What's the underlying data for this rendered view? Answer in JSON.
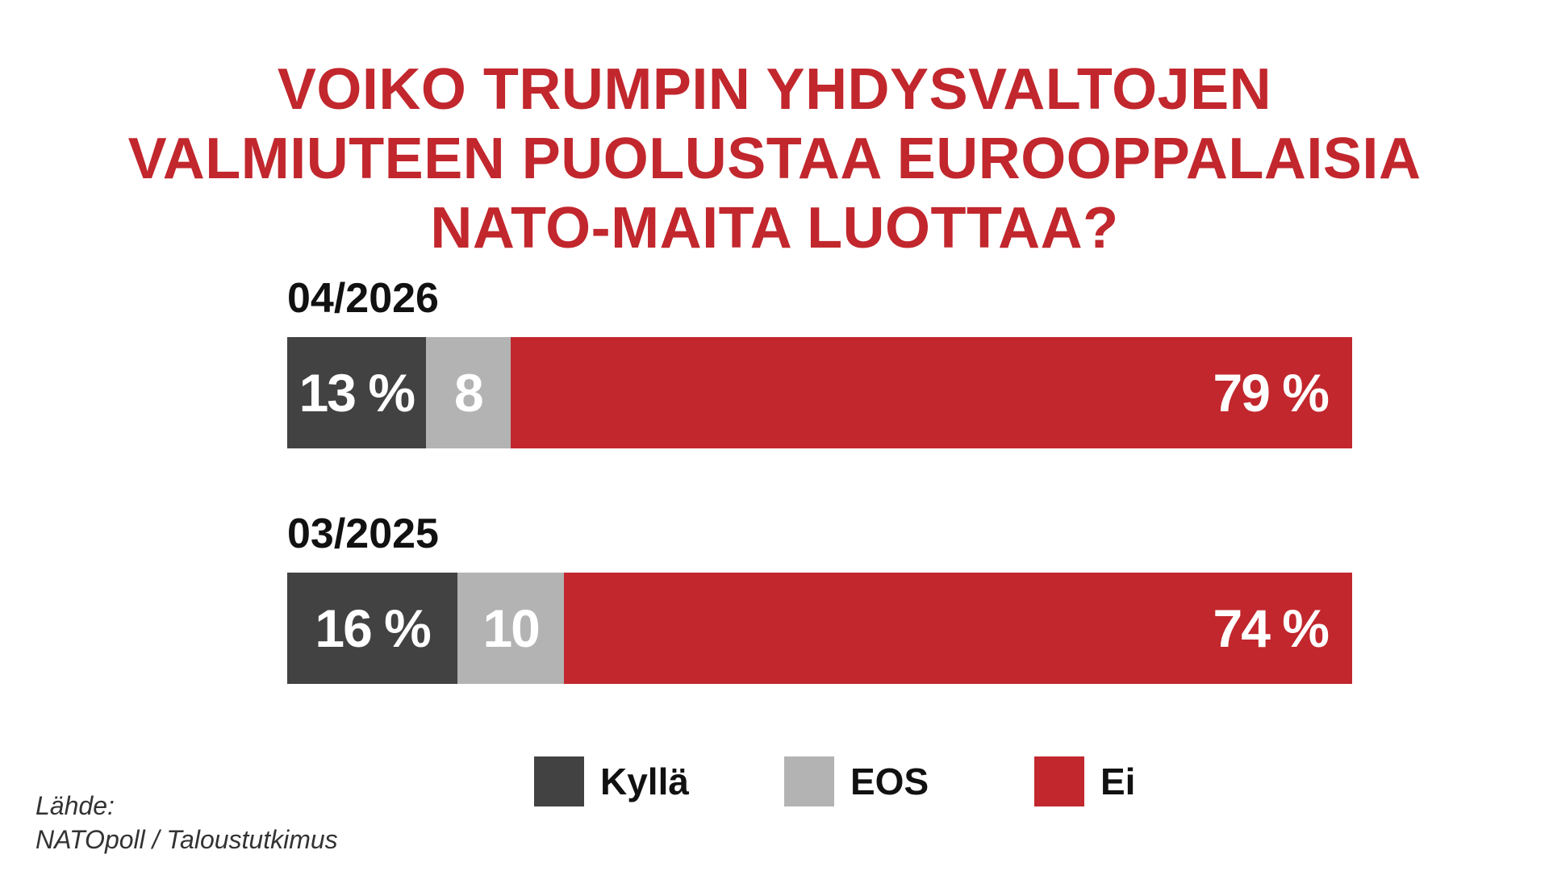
{
  "chart_data": {
    "type": "bar",
    "orientation": "horizontal",
    "stacked": true,
    "title": "VOIKO TRUMPIN YHDYSVALTOJEN VALMIUTEEN PUOLUSTAA EUROOPPALAISIA NATO-MAITA LUOTTAA?",
    "title_lines": [
      "VOIKO TRUMPIN YHDYSVALTOJEN",
      "VALMIUTEEN PUOLUSTAA EUROOPPALAISIA",
      "NATO-MAITA LUOTTAA?"
    ],
    "categories": [
      "04/2026",
      "03/2025"
    ],
    "series": [
      {
        "name": "Kyllä",
        "values": [
          13,
          16
        ],
        "color": "#424242",
        "labels": [
          "13 %",
          "16 %"
        ]
      },
      {
        "name": "EOS",
        "values": [
          8,
          10
        ],
        "color": "#b3b3b3",
        "labels": [
          "8",
          "10"
        ]
      },
      {
        "name": "Ei",
        "values": [
          79,
          74
        ],
        "color": "#c1272d",
        "labels": [
          "79 %",
          "74 %"
        ]
      }
    ],
    "xlim": [
      0,
      100
    ],
    "grid": false,
    "legend_position": "bottom",
    "source_lines": [
      "Lähde:",
      "NATOpoll / Taloustutkimus"
    ]
  }
}
